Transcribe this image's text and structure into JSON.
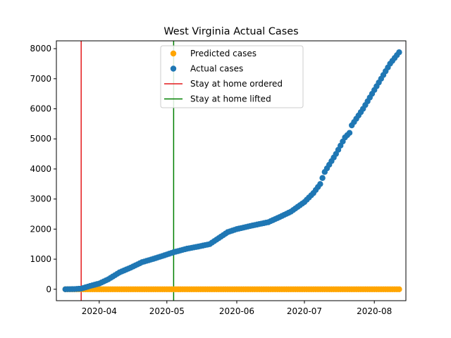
{
  "chart_data": {
    "type": "scatter",
    "title": "West Virginia Actual Cases",
    "xlabel": "",
    "ylabel": "",
    "x_ticks": [
      "2020-04",
      "2020-05",
      "2020-06",
      "2020-07",
      "2020-08"
    ],
    "y_ticks": [
      "0",
      "1000",
      "2000",
      "3000",
      "4000",
      "5000",
      "6000",
      "7000",
      "8000"
    ],
    "xlim": [
      "2020-03-13",
      "2020-08-15"
    ],
    "ylim": [
      -380,
      8260
    ],
    "grid": false,
    "legend_position": "upper-center",
    "series": [
      {
        "name": "Predicted cases",
        "color": "#ffa500",
        "marker": "circle",
        "x_start": "2020-03-17",
        "x_end": "2020-08-12",
        "value": 0
      },
      {
        "name": "Actual cases",
        "color": "#1f77b4",
        "marker": "circle",
        "x_start": "2020-03-17",
        "x_end": "2020-08-12",
        "points": [
          [
            "2020-03-17",
            0
          ],
          [
            "2020-03-21",
            5
          ],
          [
            "2020-03-24",
            20
          ],
          [
            "2020-03-28",
            110
          ],
          [
            "2020-04-01",
            190
          ],
          [
            "2020-04-05",
            330
          ],
          [
            "2020-04-10",
            560
          ],
          [
            "2020-04-15",
            720
          ],
          [
            "2020-04-20",
            900
          ],
          [
            "2020-04-25",
            1010
          ],
          [
            "2020-04-30",
            1130
          ],
          [
            "2020-05-04",
            1230
          ],
          [
            "2020-05-10",
            1350
          ],
          [
            "2020-05-15",
            1420
          ],
          [
            "2020-05-20",
            1500
          ],
          [
            "2020-05-25",
            1750
          ],
          [
            "2020-05-28",
            1900
          ],
          [
            "2020-06-01",
            2000
          ],
          [
            "2020-06-08",
            2120
          ],
          [
            "2020-06-15",
            2230
          ],
          [
            "2020-06-20",
            2400
          ],
          [
            "2020-06-25",
            2580
          ],
          [
            "2020-07-01",
            2900
          ],
          [
            "2020-07-05",
            3200
          ],
          [
            "2020-07-08",
            3500
          ],
          [
            "2020-07-10",
            3900
          ],
          [
            "2020-07-15",
            4500
          ],
          [
            "2020-07-19",
            5050
          ],
          [
            "2020-07-21",
            5200
          ],
          [
            "2020-07-22",
            5450
          ],
          [
            "2020-07-27",
            6000
          ],
          [
            "2020-07-31",
            6500
          ],
          [
            "2020-08-04",
            7000
          ],
          [
            "2020-08-08",
            7500
          ],
          [
            "2020-08-12",
            7880
          ]
        ]
      }
    ],
    "vertical_lines": [
      {
        "name": "Stay at home ordered",
        "date": "2020-03-24",
        "color": "#e41a1c"
      },
      {
        "name": "Stay at home lifted",
        "date": "2020-05-04",
        "color": "#008000"
      }
    ]
  }
}
